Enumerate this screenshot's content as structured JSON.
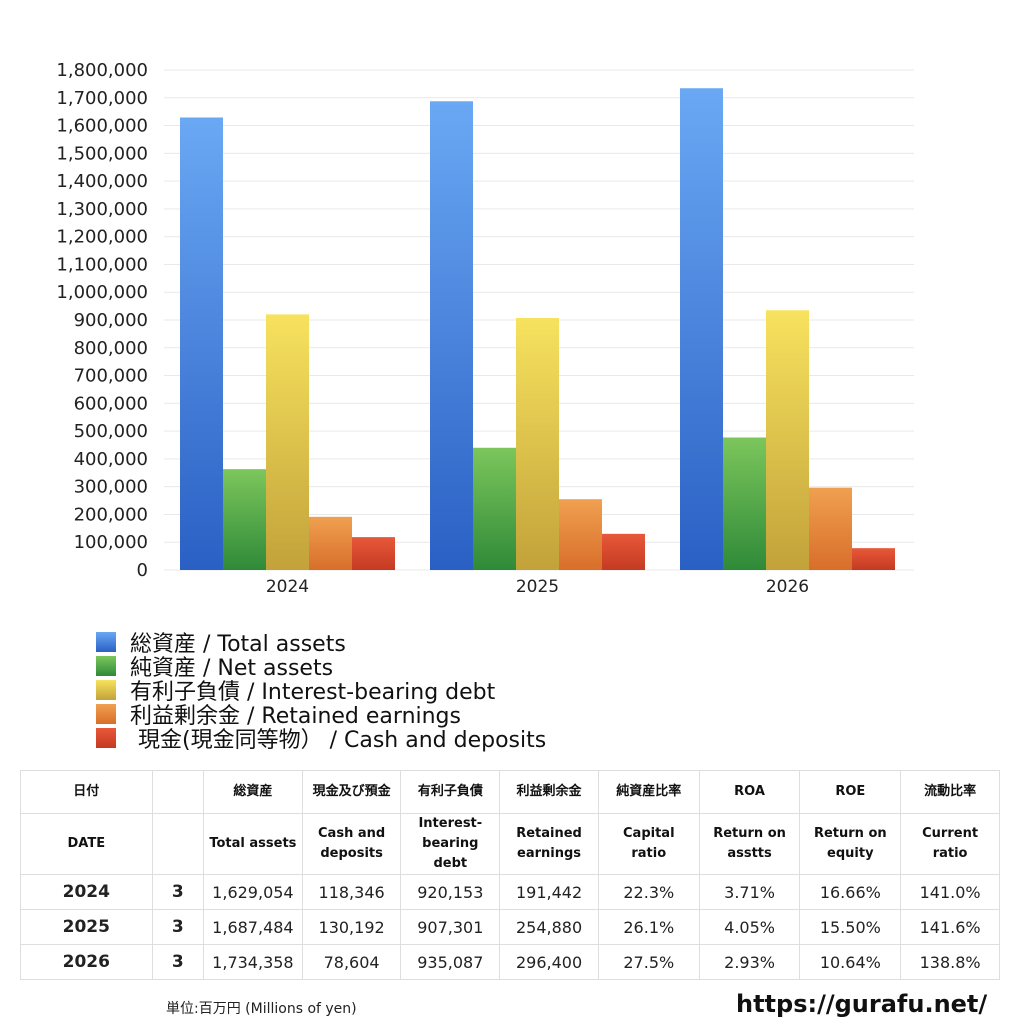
{
  "chart_data": {
    "type": "bar",
    "categories": [
      "2024",
      "2025",
      "2026"
    ],
    "series": [
      {
        "name": "総資産 / Total assets",
        "values": [
          1629054,
          1687484,
          1734358
        ],
        "color_top": "#6aa8f4",
        "color_bottom": "#2a60c4"
      },
      {
        "name": "純資産 / Net assets",
        "values": [
          363000,
          440000,
          477000
        ],
        "color_top": "#7cc65c",
        "color_bottom": "#2f8a38"
      },
      {
        "name": "有利子負債 / Interest-bearing debt",
        "values": [
          920153,
          907301,
          935087
        ],
        "color_top": "#f7e25e",
        "color_bottom": "#c2a23a"
      },
      {
        "name": "利益剰余金 / Retained earnings",
        "values": [
          191442,
          254880,
          296400
        ],
        "color_top": "#f0a050",
        "color_bottom": "#d86e2a"
      },
      {
        "name": "現金(現金同等物） / Cash and deposits",
        "values": [
          118346,
          130192,
          78604
        ],
        "color_top": "#e8583a",
        "color_bottom": "#c43a22"
      }
    ],
    "ylim": [
      0,
      1800000
    ],
    "ytick_step": 100000,
    "yticks": [
      "0",
      "100,000",
      "200,000",
      "300,000",
      "400,000",
      "500,000",
      "600,000",
      "700,000",
      "800,000",
      "900,000",
      "1,000,000",
      "1,100,000",
      "1,200,000",
      "1,300,000",
      "1,400,000",
      "1,500,000",
      "1,600,000",
      "1,700,000",
      "1,800,000"
    ],
    "grid": true,
    "legend_position": "bottom-left",
    "xlabel": "",
    "ylabel": ""
  },
  "table": {
    "header_row1": [
      "日付",
      "",
      "総資産",
      "現金及び預金",
      "有利子負債",
      "利益剰余金",
      "純資産比率",
      "ROA",
      "ROE",
      "流動比率"
    ],
    "header_row2": [
      "DATE",
      "",
      "Total assets",
      "Cash and deposits",
      "Interest-bearing debt",
      "Retained earnings",
      "Capital ratio",
      "Return on asstts",
      "Return on equity",
      "Current ratio"
    ],
    "rows": [
      [
        "2024",
        "3",
        "1,629,054",
        "118,346",
        "920,153",
        "191,442",
        "22.3%",
        "3.71%",
        "16.66%",
        "141.0%"
      ],
      [
        "2025",
        "3",
        "1,687,484",
        "130,192",
        "907,301",
        "254,880",
        "26.1%",
        "4.05%",
        "15.50%",
        "141.6%"
      ],
      [
        "2026",
        "3",
        "1,734,358",
        "78,604",
        "935,087",
        "296,400",
        "27.5%",
        "2.93%",
        "10.64%",
        "138.8%"
      ]
    ]
  },
  "footer": {
    "units": "単位:百万円 (Millions of yen)",
    "source": "https://gurafu.net/"
  }
}
